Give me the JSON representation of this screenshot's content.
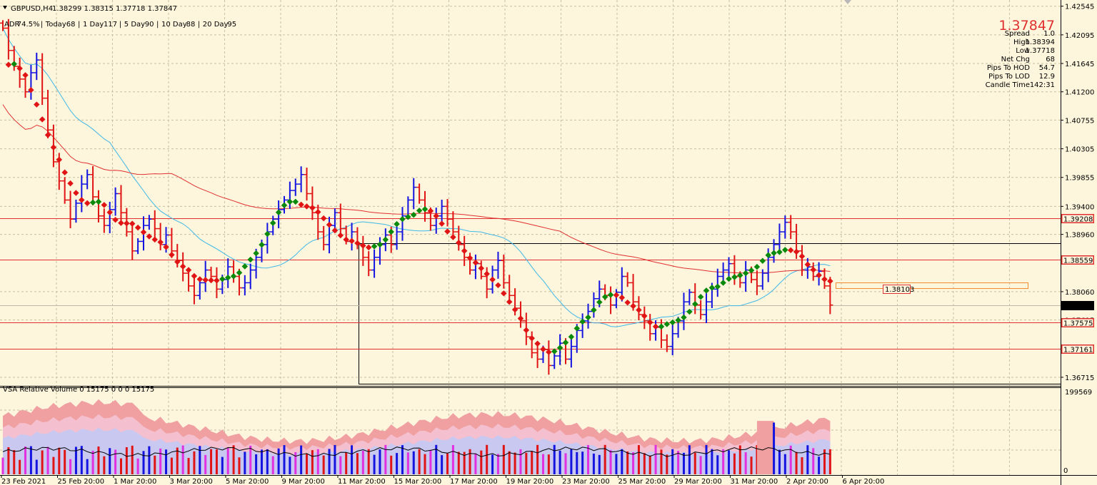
{
  "header": {
    "symbol": "GBPUSD,H4",
    "ohlc": "1.38299 1.38315 1.37718 1.37847",
    "adr": [
      {
        "label": "ADR",
        "value": "74.5%"
      },
      {
        "label": "Today",
        "value": "68"
      },
      {
        "label": "1 Day",
        "value": "117"
      },
      {
        "label": "5 Day",
        "value": "90"
      },
      {
        "label": "10 Day",
        "value": "88"
      },
      {
        "label": "20 Day",
        "value": "95"
      }
    ]
  },
  "info_panel": {
    "price": "1.37847",
    "rows": [
      {
        "label": "Spread",
        "value": "1.0",
        "color": "#e8c020"
      },
      {
        "label": "High",
        "value": "1.38394",
        "color": "#d01818"
      },
      {
        "label": "Low",
        "value": "1.37718",
        "color": "#d01818"
      },
      {
        "label": "Net Chg",
        "value": "68",
        "color": "#e8c020"
      },
      {
        "label": "Pips To HOD",
        "value": "54.7",
        "color": "#d01818"
      },
      {
        "label": "Pips To LOD",
        "value": "12.9",
        "color": "#d01818"
      },
      {
        "label": "Candle Time",
        "value": "142:31",
        "color": "#e8c020"
      }
    ]
  },
  "price_axis": [
    "1.42545",
    "1.42095",
    "1.41645",
    "1.41200",
    "1.40755",
    "1.40305",
    "1.39855",
    "1.39400",
    "1.38960",
    "1.38060",
    "1.37615",
    "1.36715"
  ],
  "levels": [
    {
      "label": "1.39208",
      "value": 1.39208
    },
    {
      "label": "1.38559",
      "value": 1.38559
    },
    {
      "label": "1.37575",
      "value": 1.37575
    },
    {
      "label": "1.37161",
      "value": 1.37161
    }
  ],
  "current_price": {
    "label": "1.37847",
    "value": 1.37847
  },
  "zone_label": "1.38103",
  "volume_panel": {
    "title": "VSA Relative Volume 0 15175 0 0 0 15175",
    "axis_top": "199569",
    "axis_bottom": "0"
  },
  "time_axis": [
    "23 Feb 2021",
    "25 Feb 20:00",
    "1 Mar 20:00",
    "3 Mar 20:00",
    "5 Mar 20:00",
    "9 Mar 20:00",
    "11 Mar 20:00",
    "15 Mar 20:00",
    "17 Mar 20:00",
    "19 Mar 20:00",
    "23 Mar 20:00",
    "25 Mar 20:00",
    "29 Mar 20:00",
    "31 Mar 20:00",
    "2 Apr 20:00",
    "6 Apr 20:00"
  ],
  "chart_data": {
    "type": "candlestick",
    "symbol": "GBPUSD",
    "timeframe": "H4",
    "ylim": [
      1.3658,
      1.4262
    ],
    "closes": [
      1.422,
      1.4185,
      1.416,
      1.414,
      1.412,
      1.415,
      1.417,
      1.411,
      1.406,
      1.401,
      1.398,
      1.395,
      1.392,
      1.3945,
      1.3975,
      1.399,
      1.3955,
      1.3925,
      1.391,
      1.3935,
      1.396,
      1.393,
      1.39,
      1.387,
      1.3885,
      1.391,
      1.392,
      1.3905,
      1.388,
      1.3895,
      1.387,
      1.3855,
      1.3835,
      1.3815,
      1.38,
      1.382,
      1.384,
      1.383,
      1.381,
      1.3825,
      1.3845,
      1.383,
      1.3812,
      1.382,
      1.384,
      1.386,
      1.388,
      1.39,
      1.392,
      1.3935,
      1.395,
      1.3965,
      1.3975,
      1.399,
      1.396,
      1.393,
      1.39,
      1.388,
      1.391,
      1.393,
      1.3905,
      1.3885,
      1.39,
      1.388,
      1.386,
      1.384,
      1.386,
      1.388,
      1.3895,
      1.388,
      1.39,
      1.3925,
      1.395,
      1.397,
      1.395,
      1.393,
      1.391,
      1.3925,
      1.394,
      1.392,
      1.39,
      1.388,
      1.386,
      1.384,
      1.385,
      1.383,
      1.381,
      1.384,
      1.3855,
      1.382,
      1.38,
      1.378,
      1.376,
      1.3735,
      1.371,
      1.37,
      1.3715,
      1.369,
      1.3705,
      1.3725,
      1.37,
      1.372,
      1.3745,
      1.376,
      1.3775,
      1.3795,
      1.381,
      1.38,
      1.3785,
      1.3805,
      1.383,
      1.382,
      1.379,
      1.377,
      1.376,
      1.374,
      1.375,
      1.373,
      1.372,
      1.374,
      1.376,
      1.379,
      1.3805,
      1.3785,
      1.377,
      1.379,
      1.381,
      1.383,
      1.384,
      1.385,
      1.383,
      1.382,
      1.384,
      1.3825,
      1.3815,
      1.3835,
      1.386,
      1.388,
      1.39,
      1.3915,
      1.39,
      1.387,
      1.384,
      1.3845,
      1.383,
      1.3838,
      1.3815,
      1.3785
    ],
    "moving_averages": [
      {
        "color": "#3fb8e8"
      },
      {
        "color": "#e03030"
      }
    ],
    "volume": {
      "type": "bar",
      "ylim": [
        0,
        199569
      ]
    }
  }
}
